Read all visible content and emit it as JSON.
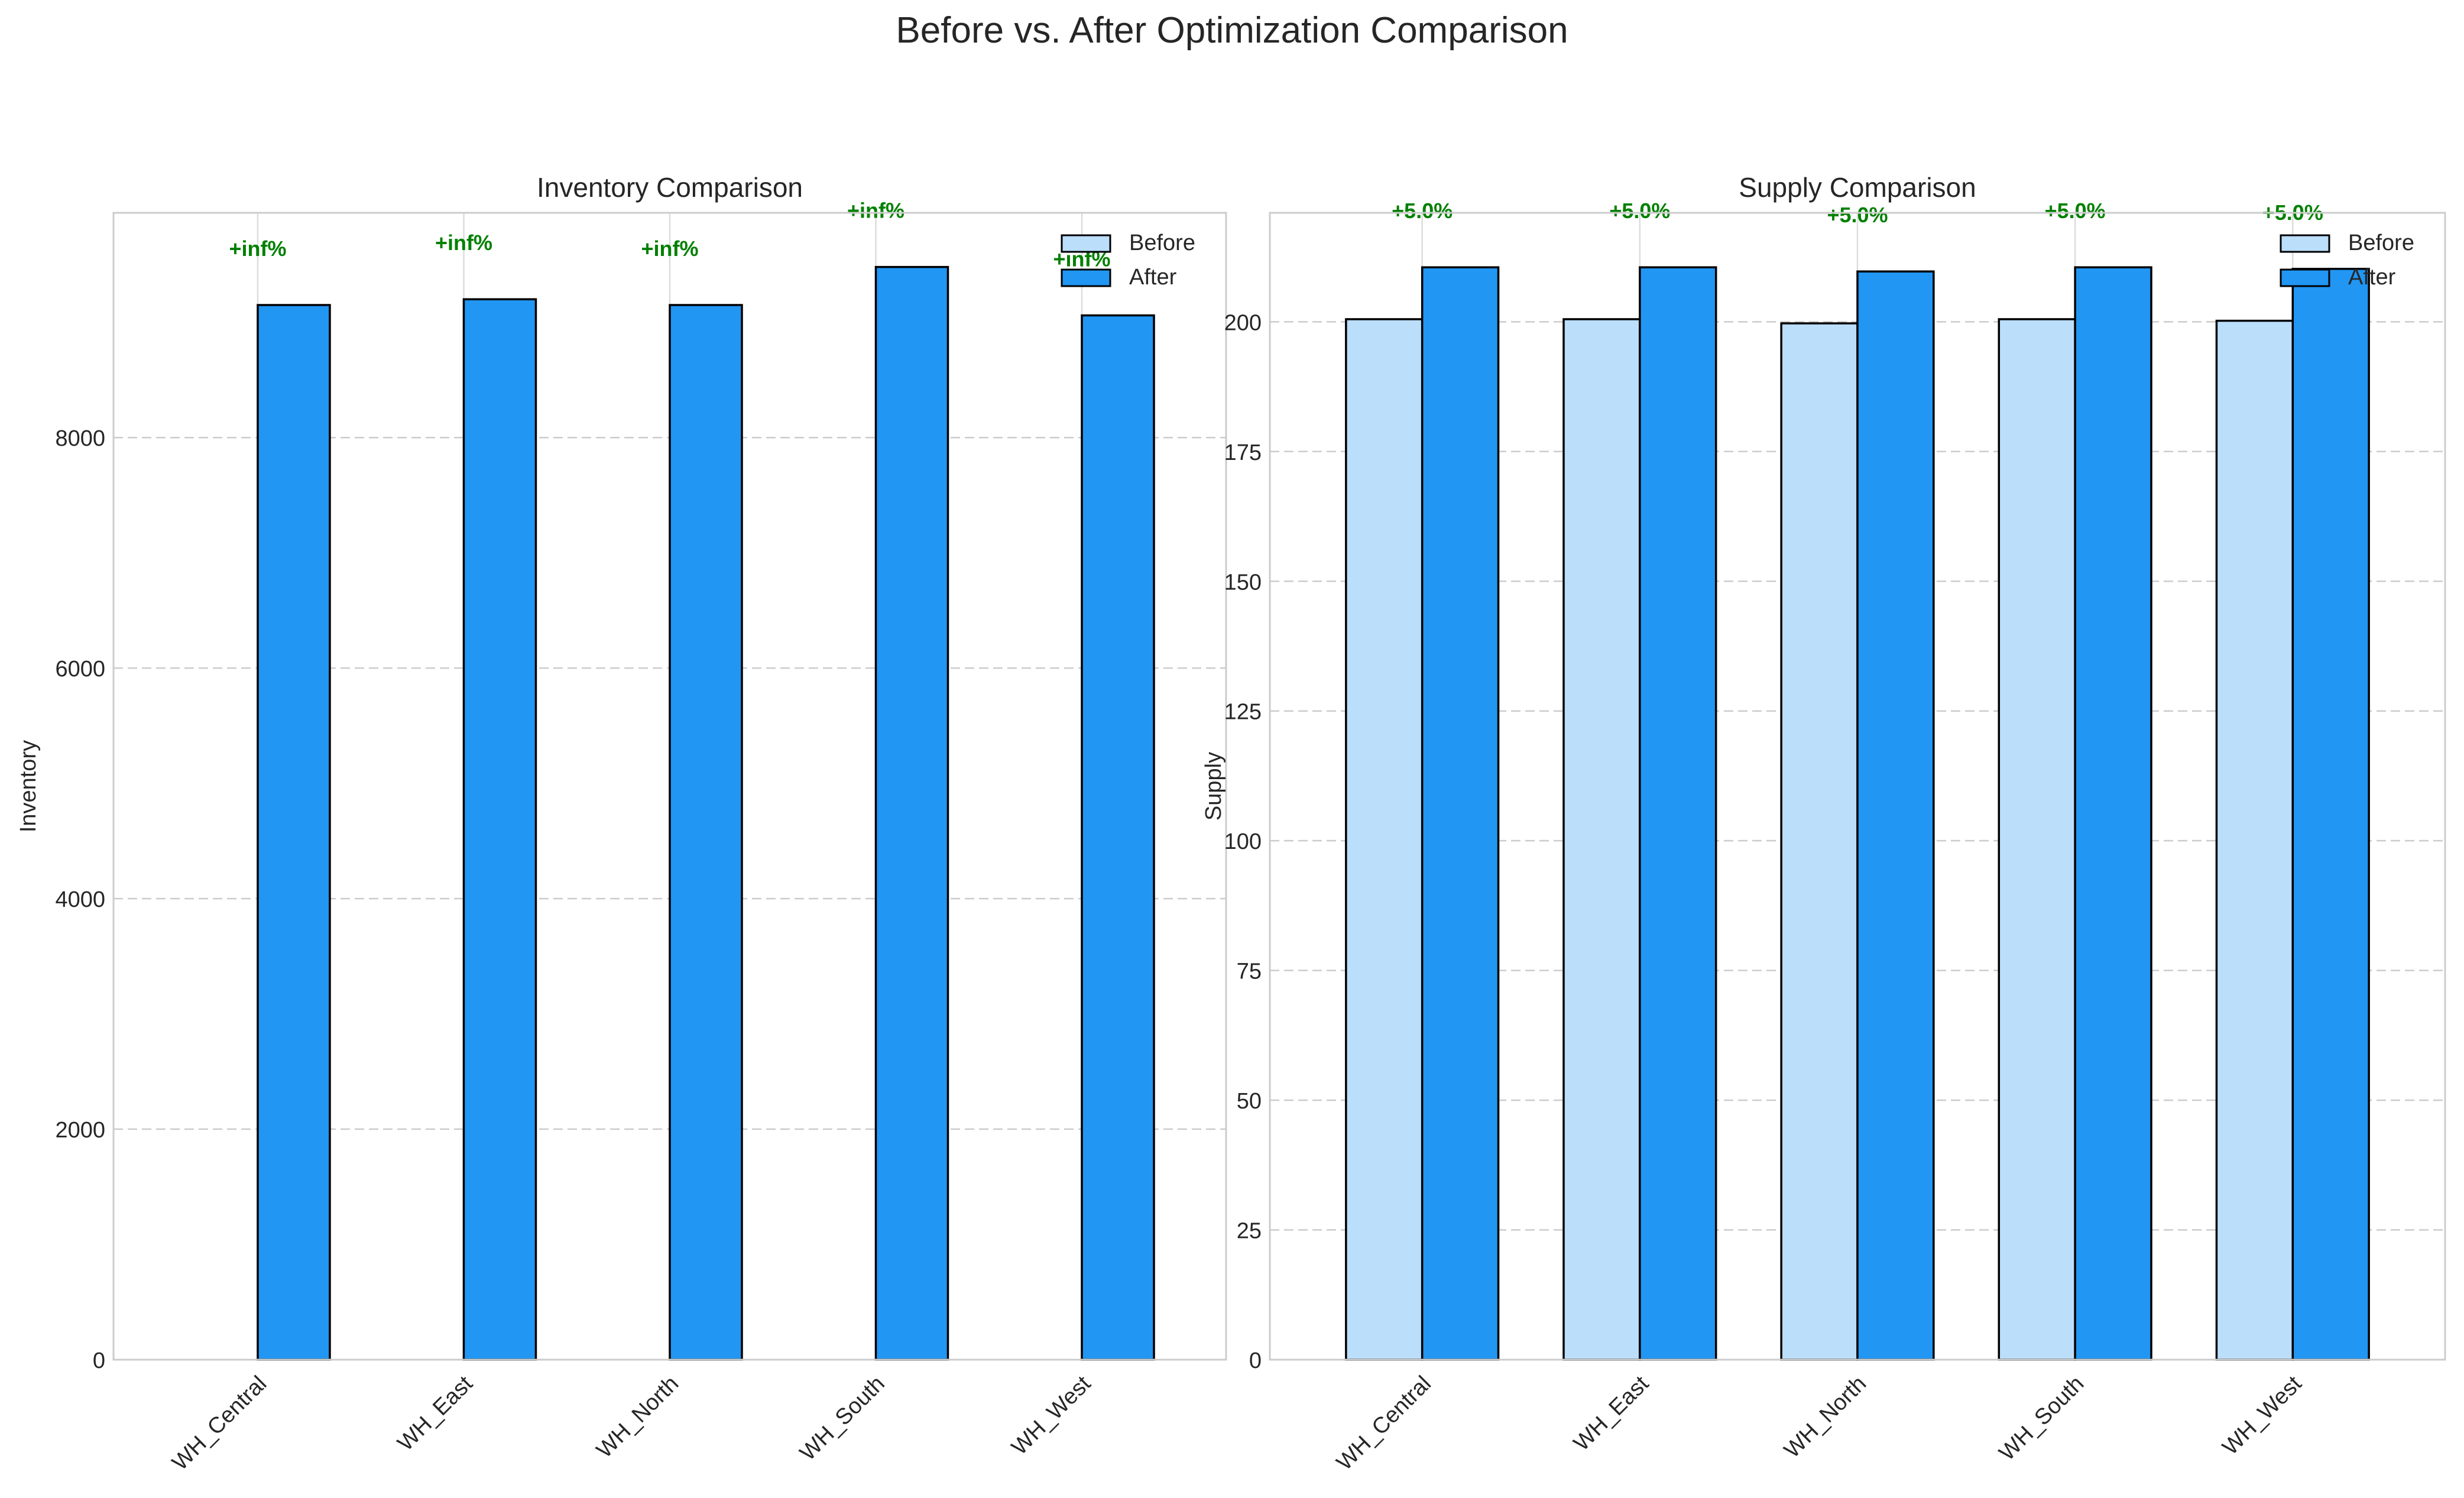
{
  "figure": {
    "title": "Before vs. After Optimization Comparison"
  },
  "colors": {
    "before": "#BBDEFB",
    "after": "#2196F3",
    "edge": "#000000",
    "pct": "#008000",
    "grid": "#cccccc",
    "frame": "#cccccc"
  },
  "chart_data": [
    {
      "type": "bar",
      "title": "Inventory Comparison",
      "xlabel": "",
      "ylabel": "Inventory",
      "categories": [
        "WH_Central",
        "WH_East",
        "WH_North",
        "WH_South",
        "WH_West"
      ],
      "series": [
        {
          "name": "Before",
          "values": [
            0,
            0,
            0,
            0,
            0
          ]
        },
        {
          "name": "After",
          "values": [
            9150,
            9200,
            9150,
            9480,
            9060
          ]
        }
      ],
      "annotations": [
        "+inf%",
        "+inf%",
        "+inf%",
        "+inf%",
        "+inf%"
      ],
      "ylim": [
        0,
        9950
      ],
      "yticks": [
        0,
        2000,
        4000,
        6000,
        8000
      ],
      "grid": true,
      "legend": "top-right"
    },
    {
      "type": "bar",
      "title": "Supply Comparison",
      "xlabel": "",
      "ylabel": "Supply",
      "categories": [
        "WH_Central",
        "WH_East",
        "WH_North",
        "WH_South",
        "WH_West"
      ],
      "series": [
        {
          "name": "Before",
          "values": [
            200.5,
            200.5,
            199.7,
            200.5,
            200.2
          ]
        },
        {
          "name": "After",
          "values": [
            210.5,
            210.5,
            209.7,
            210.5,
            210.2
          ]
        }
      ],
      "annotations": [
        "+5.0%",
        "+5.0%",
        "+5.0%",
        "+5.0%",
        "+5.0%"
      ],
      "ylim": [
        0,
        221
      ],
      "yticks": [
        0,
        25,
        50,
        75,
        100,
        125,
        150,
        175,
        200
      ],
      "grid": true,
      "legend": "top-right"
    }
  ]
}
